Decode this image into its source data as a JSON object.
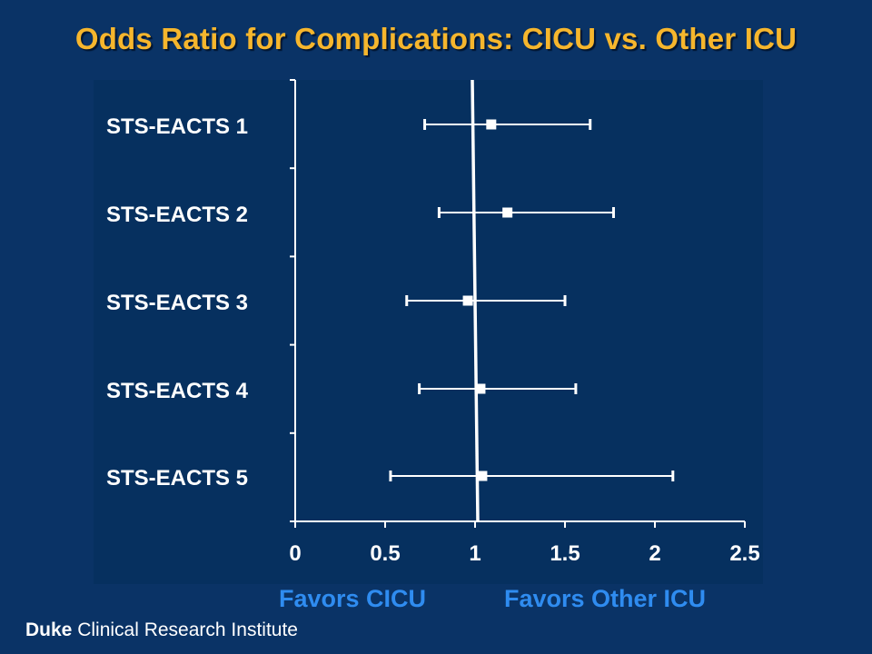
{
  "title": "Odds Ratio for Complications:  CICU vs. Other ICU",
  "favors_left": "Favors CICU",
  "favors_right": "Favors Other ICU",
  "footer": {
    "brand": "Duke",
    "rest": " Clinical Research Institute"
  },
  "colors": {
    "background": "#0a3366",
    "title": "#f6b62d",
    "favors": "#2f8cf0",
    "marks": "#ffffff"
  },
  "chart_data": {
    "type": "forest",
    "title": "Odds Ratio for Complications:  CICU vs. Other ICU",
    "xlim": [
      0,
      2.5
    ],
    "xticks": [
      "0",
      "0.5",
      "1",
      "1.5",
      "2",
      "2.5"
    ],
    "reference_line": 1,
    "grid": false,
    "categories": [
      "STS-EACTS 1",
      "STS-EACTS 2",
      "STS-EACTS 3",
      "STS-EACTS 4",
      "STS-EACTS 5"
    ],
    "series": [
      {
        "estimate": [
          1.09,
          1.18,
          0.96,
          1.03,
          1.04
        ],
        "ci_low": [
          0.72,
          0.8,
          0.62,
          0.69,
          0.53
        ],
        "ci_high": [
          1.64,
          1.77,
          1.5,
          1.56,
          2.1
        ]
      }
    ]
  }
}
